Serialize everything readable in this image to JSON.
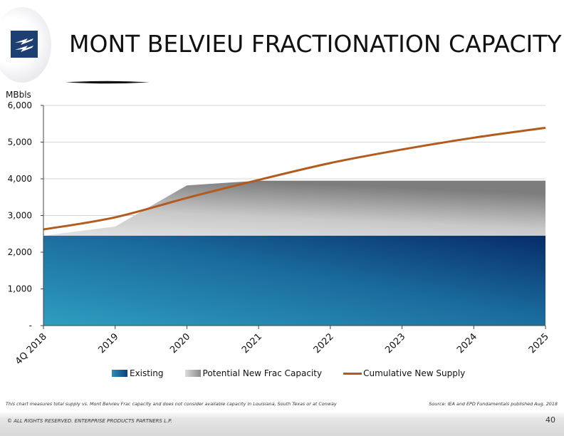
{
  "header": {
    "title": "MONT BELVIEU FRACTIONATION CAPACITY"
  },
  "chart_data": {
    "type": "area",
    "ylabel": "MBbls",
    "ylim": [
      0,
      6000
    ],
    "y_ticks": [
      0,
      1000,
      2000,
      3000,
      4000,
      5000,
      6000
    ],
    "y_tick_labels": [
      "-",
      "1,000",
      "2,000",
      "3,000",
      "4,000",
      "5,000",
      "6,000"
    ],
    "categories": [
      "4Q 2018",
      "2019",
      "2020",
      "2021",
      "2022",
      "2023",
      "2024",
      "2025"
    ],
    "grid": true,
    "legend_position": "bottom",
    "series": [
      {
        "name": "Existing",
        "kind": "stacked-area",
        "color": "#1a6a9c",
        "values": [
          2450,
          2450,
          2450,
          2450,
          2450,
          2450,
          2450,
          2450
        ]
      },
      {
        "name": "Potential New Frac Capacity",
        "kind": "stacked-area",
        "color": "#9a9a9a",
        "x": [
          0,
          1,
          2,
          3,
          4,
          5,
          6,
          7
        ],
        "values": [
          2450,
          2700,
          3820,
          3950,
          3950,
          3950,
          3950,
          3950
        ]
      },
      {
        "name": "Cumulative New Supply",
        "kind": "line",
        "color": "#b35b1e",
        "values": [
          2620,
          2950,
          3480,
          3970,
          4430,
          4800,
          5120,
          5390
        ]
      }
    ]
  },
  "footnote": "This chart measures total supply vs. Mont Belvieu Frac capacity and does not consider available capacity in Louisiana, South Texas or at Conway",
  "source": "Source:  IEA and EPD Fundamentals published Aug. 2018",
  "footer": {
    "copyright": "© ALL RIGHTS RESERVED. ENTERPRISE PRODUCTS PARTNERS L.P.",
    "page_number": "40"
  }
}
